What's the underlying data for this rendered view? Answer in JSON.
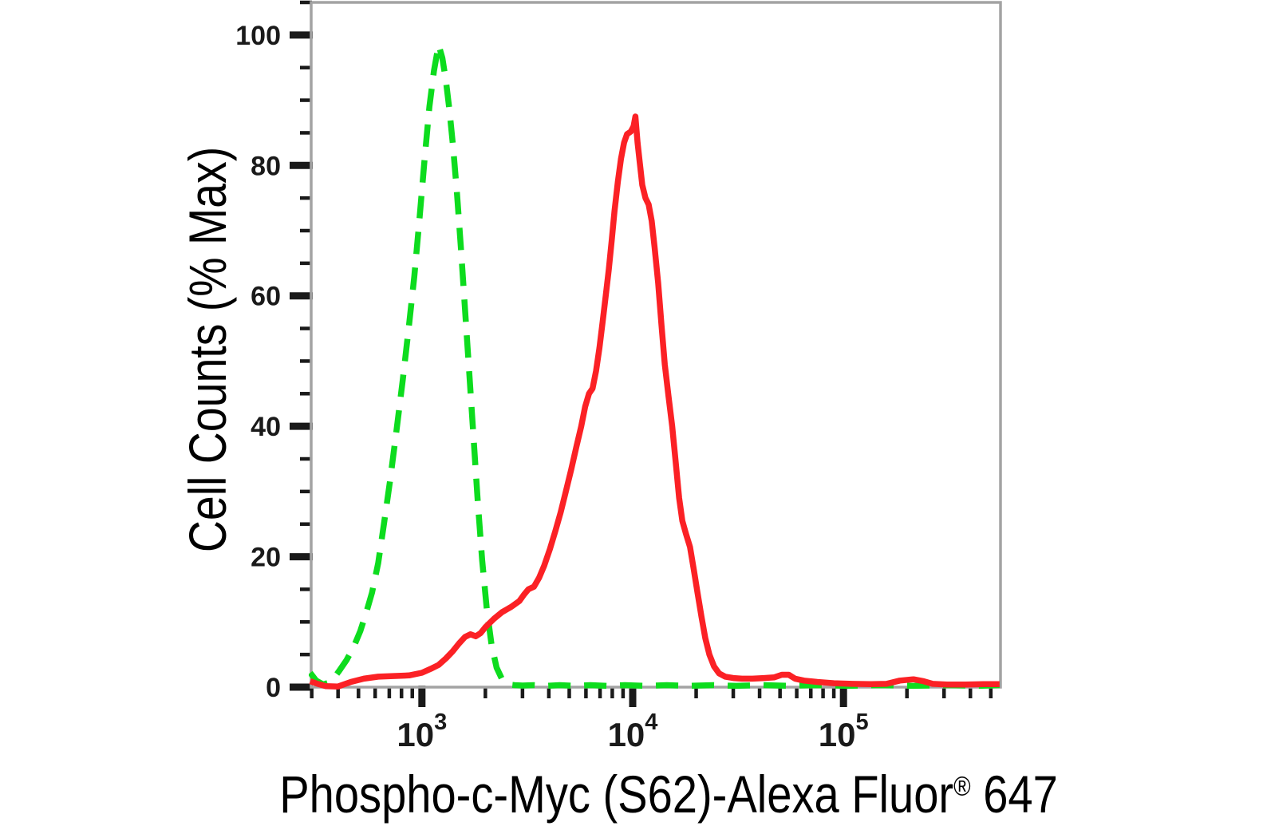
{
  "figure": {
    "background_color": "#ffffff",
    "y_axis_title": "Cell Counts (% Max)",
    "x_axis_title_main": "Phospho-c-Myc (S62)-Alexa Fluor",
    "x_axis_title_reg": "®",
    "x_axis_title_suffix": " 647"
  },
  "chart_data": {
    "type": "line",
    "title": "",
    "xlabel": "Phospho-c-Myc (S62)-Alexa Fluor® 647",
    "ylabel": "Cell Counts (% Max)",
    "grid": false,
    "legend": "none",
    "frame_color": "#a3a3a3",
    "tick_color": "#1a1a1a",
    "x_axis": {
      "scale": "log10",
      "log_min": 2.4745,
      "log_max": 5.745,
      "decade_label_exponents": [
        3,
        4,
        5
      ],
      "decade_label_base": "10"
    },
    "y_axis": {
      "scale": "linear",
      "min": 0,
      "max": 105,
      "major_ticks": [
        0,
        20,
        40,
        60,
        80,
        100
      ],
      "minor_step": 5
    },
    "series": [
      {
        "name": "green-dashed-histogram",
        "color": "#0ddc1e",
        "line_style": "dashed",
        "stroke_width": 7.5,
        "dash_pattern": "28 17",
        "peak": {
          "x": 1200,
          "pct": 98.5
        },
        "points": [
          [
            295,
            2.2
          ],
          [
            315,
            1.0
          ],
          [
            340,
            0.4
          ],
          [
            370,
            0.8
          ],
          [
            405,
            2.5
          ],
          [
            440,
            4.2
          ],
          [
            475,
            6.2
          ],
          [
            510,
            8.6
          ],
          [
            545,
            11.5
          ],
          [
            580,
            14.5
          ],
          [
            620,
            19
          ],
          [
            660,
            25
          ],
          [
            705,
            31.5
          ],
          [
            755,
            39
          ],
          [
            810,
            47
          ],
          [
            865,
            55
          ],
          [
            920,
            63
          ],
          [
            975,
            72
          ],
          [
            1030,
            81
          ],
          [
            1085,
            89
          ],
          [
            1140,
            94.5
          ],
          [
            1200,
            98.5
          ],
          [
            1250,
            96.5
          ],
          [
            1300,
            93
          ],
          [
            1350,
            88.5
          ],
          [
            1405,
            83
          ],
          [
            1465,
            76
          ],
          [
            1530,
            67.5
          ],
          [
            1600,
            58
          ],
          [
            1675,
            48.5
          ],
          [
            1755,
            38.5
          ],
          [
            1840,
            28.5
          ],
          [
            1930,
            19.5
          ],
          [
            2030,
            12
          ],
          [
            2140,
            6.5
          ],
          [
            2260,
            3
          ],
          [
            2400,
            1.2
          ],
          [
            2560,
            0.4
          ],
          [
            2750,
            0.3
          ],
          [
            3000,
            0.25
          ],
          [
            3400,
            0.3
          ],
          [
            3900,
            0.2
          ],
          [
            4500,
            0.3
          ],
          [
            5300,
            0.2
          ],
          [
            6300,
            0.3
          ],
          [
            7600,
            0.2
          ],
          [
            9200,
            0.3
          ],
          [
            11500,
            0.2
          ],
          [
            14500,
            0.3
          ],
          [
            18500,
            0.2
          ],
          [
            24000,
            0.3
          ],
          [
            31000,
            0.2
          ],
          [
            41000,
            0.3
          ],
          [
            55000,
            0.2
          ],
          [
            75000,
            0.3
          ],
          [
            105000,
            0.2
          ],
          [
            150000,
            0.3
          ],
          [
            215000,
            0.2
          ],
          [
            310000,
            0.3
          ],
          [
            440000,
            0.2
          ],
          [
            550000,
            0.3
          ]
        ]
      },
      {
        "name": "red-solid-histogram",
        "color": "#fb2125",
        "line_style": "solid",
        "stroke_width": 7.5,
        "dash_pattern": "",
        "peak": {
          "x": 10300,
          "pct": 87.5
        },
        "points": [
          [
            295,
            0.9
          ],
          [
            320,
            0.5
          ],
          [
            350,
            0.15
          ],
          [
            400,
            0.1
          ],
          [
            460,
            0.8
          ],
          [
            530,
            1.3
          ],
          [
            620,
            1.6
          ],
          [
            730,
            1.7
          ],
          [
            870,
            1.8
          ],
          [
            1000,
            2.2
          ],
          [
            1100,
            2.8
          ],
          [
            1200,
            3.4
          ],
          [
            1300,
            4.4
          ],
          [
            1400,
            5.5
          ],
          [
            1500,
            6.7
          ],
          [
            1600,
            7.7
          ],
          [
            1700,
            8.1
          ],
          [
            1800,
            7.8
          ],
          [
            1900,
            8.3
          ],
          [
            2000,
            9.2
          ],
          [
            2200,
            10.5
          ],
          [
            2400,
            11.5
          ],
          [
            2650,
            12.3
          ],
          [
            2900,
            13.2
          ],
          [
            3050,
            14.2
          ],
          [
            3200,
            15.0
          ],
          [
            3400,
            15.4
          ],
          [
            3600,
            16.8
          ],
          [
            3800,
            18.6
          ],
          [
            4050,
            21.2
          ],
          [
            4300,
            24
          ],
          [
            4550,
            26.8
          ],
          [
            4800,
            29.8
          ],
          [
            5100,
            33.3
          ],
          [
            5400,
            36.8
          ],
          [
            5700,
            40
          ],
          [
            5950,
            43
          ],
          [
            6200,
            45
          ],
          [
            6450,
            45.8
          ],
          [
            6700,
            48.5
          ],
          [
            6950,
            52
          ],
          [
            7200,
            56
          ],
          [
            7450,
            60
          ],
          [
            7700,
            64
          ],
          [
            7950,
            68.5
          ],
          [
            8200,
            73
          ],
          [
            8500,
            77.5
          ],
          [
            8800,
            81
          ],
          [
            9100,
            83.5
          ],
          [
            9400,
            84.8
          ],
          [
            9800,
            85.2
          ],
          [
            10100,
            86
          ],
          [
            10300,
            87.5
          ],
          [
            10550,
            83.5
          ],
          [
            10800,
            80.5
          ],
          [
            11100,
            77
          ],
          [
            11500,
            75
          ],
          [
            11900,
            74
          ],
          [
            12300,
            71.5
          ],
          [
            12700,
            67.5
          ],
          [
            13200,
            62
          ],
          [
            13700,
            55.5
          ],
          [
            14200,
            49.5
          ],
          [
            14800,
            44.5
          ],
          [
            15400,
            40
          ],
          [
            16000,
            34.5
          ],
          [
            16600,
            29
          ],
          [
            17200,
            25.5
          ],
          [
            17900,
            23.5
          ],
          [
            18700,
            21.5
          ],
          [
            19500,
            18
          ],
          [
            20300,
            14.5
          ],
          [
            21200,
            10.8
          ],
          [
            22100,
            7.5
          ],
          [
            23100,
            5
          ],
          [
            24300,
            3.2
          ],
          [
            25700,
            2.1
          ],
          [
            27500,
            1.6
          ],
          [
            30000,
            1.4
          ],
          [
            33000,
            1.3
          ],
          [
            37000,
            1.3
          ],
          [
            42000,
            1.4
          ],
          [
            47000,
            1.5
          ],
          [
            51000,
            1.9
          ],
          [
            55000,
            1.9
          ],
          [
            59000,
            1.3
          ],
          [
            65000,
            1.0
          ],
          [
            75000,
            0.8
          ],
          [
            90000,
            0.6
          ],
          [
            110000,
            0.5
          ],
          [
            135000,
            0.45
          ],
          [
            160000,
            0.5
          ],
          [
            185000,
            1.0
          ],
          [
            215000,
            1.2
          ],
          [
            240000,
            0.9
          ],
          [
            265000,
            0.5
          ],
          [
            310000,
            0.4
          ],
          [
            380000,
            0.4
          ],
          [
            460000,
            0.45
          ],
          [
            550000,
            0.45
          ]
        ]
      }
    ]
  }
}
